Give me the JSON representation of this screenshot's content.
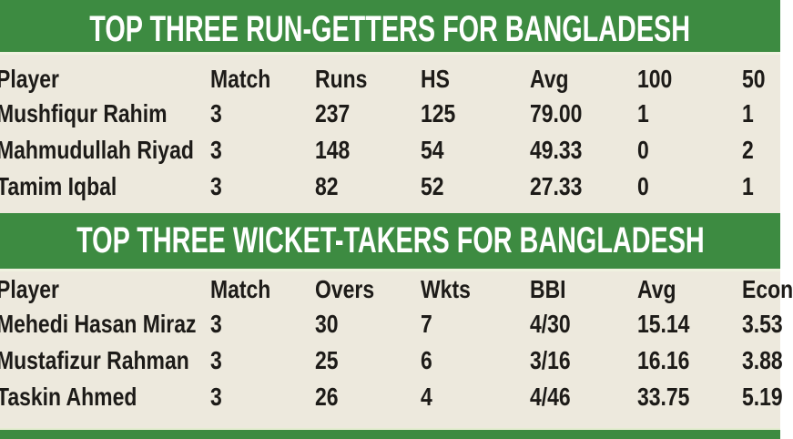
{
  "colors": {
    "band_green": "#3d8b41",
    "background_cream": "#ede9dd",
    "title_text": "#ffffff",
    "body_text": "#1d1b18",
    "band_edge_line": "#f0f2e0"
  },
  "chart_data": [
    {
      "type": "table",
      "title": "TOP THREE RUN-GETTERS FOR BANGLADESH",
      "columns": [
        "Player",
        "Match",
        "Runs",
        "HS",
        "Avg",
        "100",
        "50"
      ],
      "rows": [
        [
          "Mushfiqur Rahim",
          "3",
          "237",
          "125",
          "79.00",
          "1",
          "1"
        ],
        [
          "Mahmudullah Riyad",
          "3",
          "148",
          "54",
          "49.33",
          "0",
          "2"
        ],
        [
          "Tamim Iqbal",
          "3",
          "82",
          "52",
          "27.33",
          "0",
          "1"
        ]
      ],
      "legend_position": "none",
      "grid": false
    },
    {
      "type": "table",
      "title": "TOP THREE WICKET-TAKERS FOR BANGLADESH",
      "columns": [
        "Player",
        "Match",
        "Overs",
        "Wkts",
        "BBI",
        "Avg",
        "Econ"
      ],
      "rows": [
        [
          "Mehedi Hasan Miraz",
          "3",
          "30",
          "7",
          "4/30",
          "15.14",
          "3.53"
        ],
        [
          "Mustafizur Rahman",
          "3",
          "25",
          "6",
          "3/16",
          "16.16",
          "3.88"
        ],
        [
          "Taskin Ahmed",
          "3",
          "26",
          "4",
          "4/46",
          "33.75",
          "5.19"
        ]
      ],
      "legend_position": "none",
      "grid": false
    }
  ]
}
